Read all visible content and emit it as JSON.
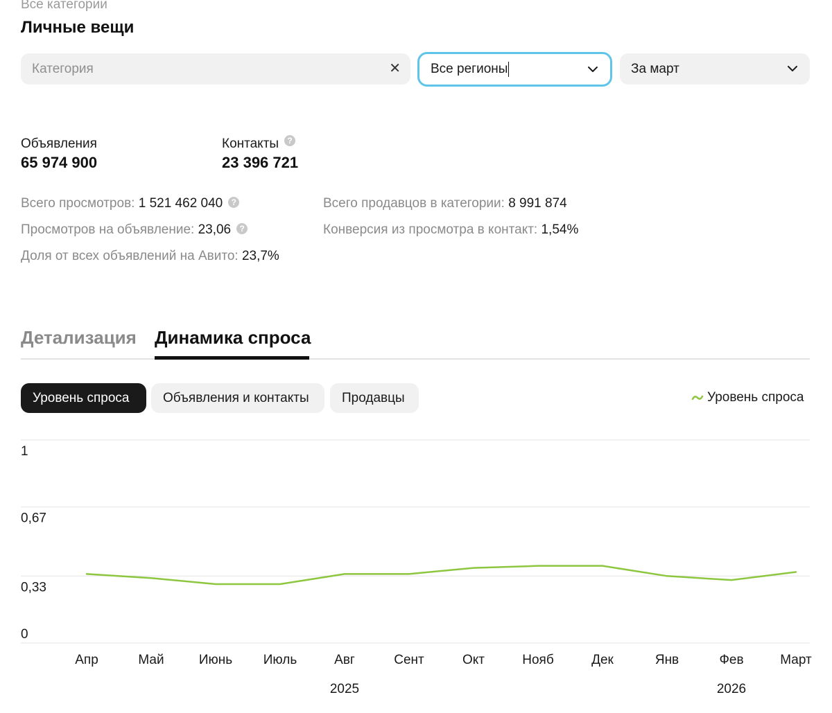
{
  "header": {
    "breadcrumb": "Все категории",
    "title": "Личные вещи"
  },
  "filters": {
    "category_placeholder": "Категория",
    "region_value": "Все регионы",
    "period_value": "За март"
  },
  "stats": {
    "listings_label": "Объявления",
    "listings_value": "65 974 900",
    "contacts_label": "Контакты",
    "contacts_value": "23 396 721"
  },
  "metrics": {
    "total_views_label": "Всего просмотров:",
    "total_views_value": "1 521 462 040",
    "views_per_listing_label": "Просмотров на объявление:",
    "views_per_listing_value": "23,06",
    "share_label": "Доля от всех объявлений на Авито:",
    "share_value": "23,7%",
    "sellers_label": "Всего продавцов в категории:",
    "sellers_value": "8 991 874",
    "conversion_label": "Конверсия из просмотра в контакт:",
    "conversion_value": "1,54%"
  },
  "tabs": [
    {
      "label": "Детализация",
      "active": false
    },
    {
      "label": "Динамика спроса",
      "active": true
    }
  ],
  "chips": [
    {
      "label": "Уровень спроса",
      "active": true
    },
    {
      "label": "Объявления и контакты",
      "active": false
    },
    {
      "label": "Продавцы",
      "active": false
    }
  ],
  "legend_label": "Уровень спроса",
  "icons": {
    "clear": "close-icon",
    "dropdown": "chevron-down-icon",
    "help": "question-icon",
    "legend": "line-series-icon"
  },
  "colors": {
    "series": "#8dc63f",
    "focus_border": "#5fc4ea",
    "active_chip": "#1a1a1a"
  },
  "chart_data": {
    "type": "line",
    "categories": [
      "Апр",
      "Май",
      "Июнь",
      "Июль",
      "Авг",
      "Сент",
      "Окт",
      "Нояб",
      "Дек",
      "Янв",
      "Фев",
      "Март"
    ],
    "year_labels": [
      {
        "label": "2025",
        "at": "Авг"
      },
      {
        "label": "2026",
        "at": "Фев"
      }
    ],
    "series": [
      {
        "name": "Уровень спроса",
        "values": [
          0.34,
          0.32,
          0.29,
          0.29,
          0.34,
          0.34,
          0.37,
          0.38,
          0.38,
          0.33,
          0.31,
          0.35
        ]
      }
    ],
    "y_ticks": [
      0,
      0.33,
      0.67,
      1
    ],
    "y_tick_labels": [
      "0",
      "0,33",
      "0,67",
      "1"
    ],
    "ylim": [
      0,
      1
    ],
    "grid": true
  }
}
